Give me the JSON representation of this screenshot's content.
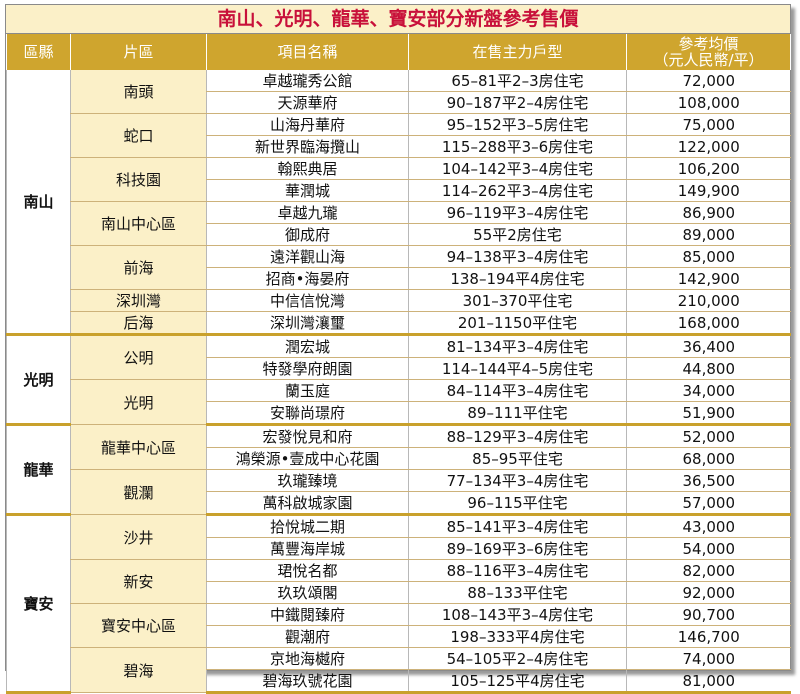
{
  "title": "南山、光明、龍華、寶安部分新盤參考售價",
  "headers": {
    "district": "區縣",
    "area": "片區",
    "project": "項目名稱",
    "units": "在售主力戶型",
    "price_line1": "參考均價",
    "price_line2": "（元人民幣/平）"
  },
  "districts": [
    {
      "name": "南山",
      "areas": [
        {
          "name": "南頭",
          "rows": [
            {
              "project": "卓越瓏秀公館",
              "units": "65–81平2–3房住宅",
              "price": "72,000"
            },
            {
              "project": "天源華府",
              "units": "90–187平2–4房住宅",
              "price": "108,000"
            }
          ]
        },
        {
          "name": "蛇口",
          "rows": [
            {
              "project": "山海丹華府",
              "units": "95–152平3–5房住宅",
              "price": "75,000"
            },
            {
              "project": "新世界臨海攬山",
              "units": "115–288平3–6房住宅",
              "price": "122,000"
            }
          ]
        },
        {
          "name": "科技園",
          "rows": [
            {
              "project": "翰熙典居",
              "units": "104–142平3–4房住宅",
              "price": "106,200"
            },
            {
              "project": "華潤城",
              "units": "114–262平3–4房住宅",
              "price": "149,900"
            }
          ]
        },
        {
          "name": "南山中心區",
          "rows": [
            {
              "project": "卓越九瓏",
              "units": "96–119平3–4房住宅",
              "price": "86,900"
            },
            {
              "project": "御成府",
              "units": "55平2房住宅",
              "price": "89,000"
            }
          ]
        },
        {
          "name": "前海",
          "rows": [
            {
              "project": "遠洋觀山海",
              "units": "94–138平3–4房住宅",
              "price": "85,000"
            },
            {
              "project": "招商•海晏府",
              "units": "138–194平4房住宅",
              "price": "142,900"
            }
          ]
        },
        {
          "name": "深圳灣",
          "rows": [
            {
              "project": "中信信悅灣",
              "units": "301–370平住宅",
              "price": "210,000"
            }
          ]
        },
        {
          "name": "后海",
          "rows": [
            {
              "project": "深圳灣瀼璽",
              "units": "201–1150平住宅",
              "price": "168,000"
            }
          ]
        }
      ]
    },
    {
      "name": "光明",
      "areas": [
        {
          "name": "公明",
          "rows": [
            {
              "project": "潤宏城",
              "units": "81–134平3–4房住宅",
              "price": "36,400"
            },
            {
              "project": "特發學府朗園",
              "units": "114–144平4–5房住宅",
              "price": "44,800"
            }
          ]
        },
        {
          "name": "光明",
          "rows": [
            {
              "project": "蘭玉庭",
              "units": "84–114平3–4房住宅",
              "price": "34,000"
            },
            {
              "project": "安聯尚璟府",
              "units": "89–111平住宅",
              "price": "51,900"
            }
          ]
        }
      ]
    },
    {
      "name": "龍華",
      "areas": [
        {
          "name": "龍華中心區",
          "rows": [
            {
              "project": "宏發悅見和府",
              "units": "88–129平3–4房住宅",
              "price": "52,000"
            },
            {
              "project": "鴻榮源•壹成中心花園",
              "units": "85–95平住宅",
              "price": "68,000"
            }
          ]
        },
        {
          "name": "觀瀾",
          "rows": [
            {
              "project": "玖瓏臻境",
              "units": "77–134平3–4房住宅",
              "price": "36,500"
            },
            {
              "project": "萬科啟城家園",
              "units": "96–115平住宅",
              "price": "57,000"
            }
          ]
        }
      ]
    },
    {
      "name": "寶安",
      "areas": [
        {
          "name": "沙井",
          "rows": [
            {
              "project": "拾悅城二期",
              "units": "85–141平3–4房住宅",
              "price": "43,000"
            },
            {
              "project": "萬豐海岸城",
              "units": "89–169平3–6房住宅",
              "price": "54,000"
            }
          ]
        },
        {
          "name": "新安",
          "rows": [
            {
              "project": "珺悅名都",
              "units": "88–116平3–4房住宅",
              "price": "82,000"
            },
            {
              "project": "玖玖頌閣",
              "units": "88–133平住宅",
              "price": "92,000"
            }
          ]
        },
        {
          "name": "寶安中心區",
          "rows": [
            {
              "project": "中鐵閱臻府",
              "units": "108–143平3–4房住宅",
              "price": "90,700"
            },
            {
              "project": "觀潮府",
              "units": "198–333平4房住宅",
              "price": "146,700"
            }
          ]
        },
        {
          "name": "碧海",
          "rows": [
            {
              "project": "京地海樾府",
              "units": "54–105平2–4房住宅",
              "price": "74,000"
            },
            {
              "project": "碧海玖號花園",
              "units": "105–125平4房住宅",
              "price": "81,000"
            }
          ]
        }
      ]
    }
  ]
}
